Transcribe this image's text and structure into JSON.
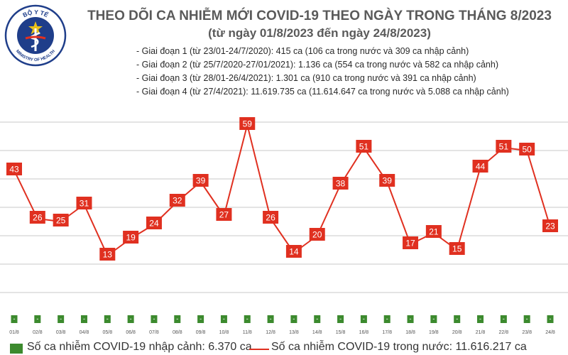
{
  "logo": {
    "top_text": "BỘ Y TẾ",
    "bottom_text": "MINISTRY OF HEALTH"
  },
  "title": "THEO DÕI CA NHIỄM MỚI COVID-19 THEO NGÀY TRONG THÁNG 8/2023",
  "subtitle": "(từ ngày 01/8/2023 đến ngày 24/8/2023)",
  "stages": [
    "- Giai đoạn 1 (từ 23/01-24/7/2020): 415 ca (106 ca trong nước và 309 ca nhập cảnh)",
    "- Giai đoạn 2 (từ 25/7/2020-27/01/2021): 1.136 ca (554 ca trong nước và 582 ca nhập cảnh)",
    "- Giai đoạn 3 (từ 28/01-26/4/2021): 1.301 ca (910 ca trong nước và 391 ca nhập cảnh)",
    "- Giai đoạn 4 (từ 27/4/2021): 11.619.735 ca (11.614.647 ca trong nước và 5.088 ca nhập cảnh)"
  ],
  "legend": {
    "imported": "Số ca nhiễm COVID-19 nhập cảnh: 6.370 ca",
    "domestic": "Số ca nhiễm COVID-19 trong nước: 11.616.217 ca"
  },
  "colors": {
    "line": "#e03020",
    "label_bg": "#e03020",
    "bar": "#3c8a2e",
    "grid": "#c8c8c8"
  },
  "chart_data": {
    "type": "line",
    "title": "THEO DÕI CA NHIỄM MỚI COVID-19 THEO NGÀY TRONG THÁNG 8/2023",
    "categories": [
      "01/8",
      "02/8",
      "03/8",
      "04/8",
      "05/8",
      "06/8",
      "07/8",
      "08/8",
      "09/8",
      "10/8",
      "11/8",
      "12/8",
      "13/8",
      "14/8",
      "15/8",
      "16/8",
      "17/8",
      "18/8",
      "19/8",
      "20/8",
      "21/8",
      "22/8",
      "23/8",
      "24/8"
    ],
    "series": [
      {
        "name": "Số ca nhiễm COVID-19 trong nước",
        "values": [
          43,
          26,
          25,
          31,
          13,
          19,
          24,
          32,
          39,
          27,
          59,
          26,
          14,
          20,
          38,
          51,
          39,
          17,
          21,
          15,
          44,
          51,
          50,
          23
        ]
      },
      {
        "name": "Số ca nhiễm COVID-19 nhập cảnh",
        "values": [
          0,
          0,
          0,
          0,
          0,
          0,
          0,
          0,
          0,
          0,
          0,
          0,
          0,
          0,
          0,
          0,
          0,
          0,
          0,
          0,
          0,
          0,
          0,
          0
        ],
        "labels": [
          "-",
          "-",
          "-",
          "-",
          "-",
          "-",
          "-",
          "-",
          "-",
          "-",
          "-",
          "-",
          "-",
          "-",
          "-",
          "-",
          "-",
          "-",
          "-",
          "-",
          "-",
          "-",
          "-",
          "-"
        ]
      }
    ],
    "ylim": [
      0,
      70
    ],
    "grid": true,
    "legend": "bottom"
  }
}
